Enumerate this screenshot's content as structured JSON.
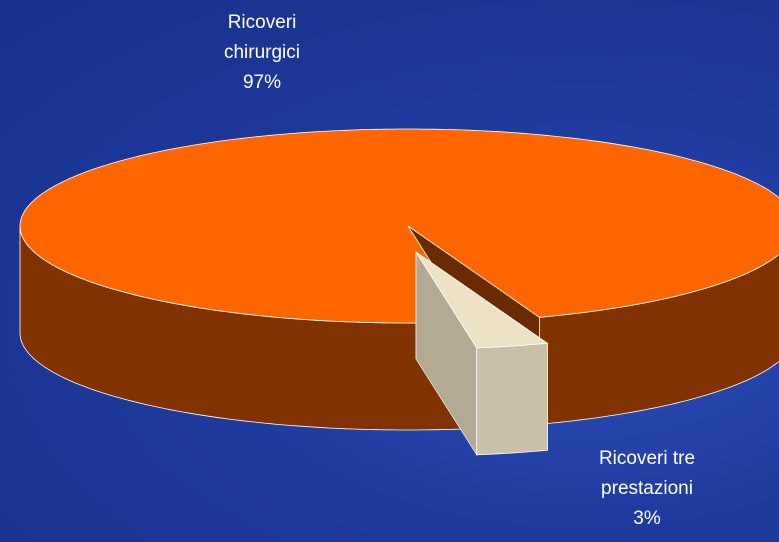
{
  "chart_data": {
    "type": "pie3d",
    "categories": [
      "Ricoveri chirurgici",
      "Ricoveri tre prestazioni"
    ],
    "values": [
      97,
      3
    ],
    "value_labels": [
      "97%",
      "3%"
    ],
    "colors": [
      "#ff6600",
      "#eee2c4"
    ]
  }
}
